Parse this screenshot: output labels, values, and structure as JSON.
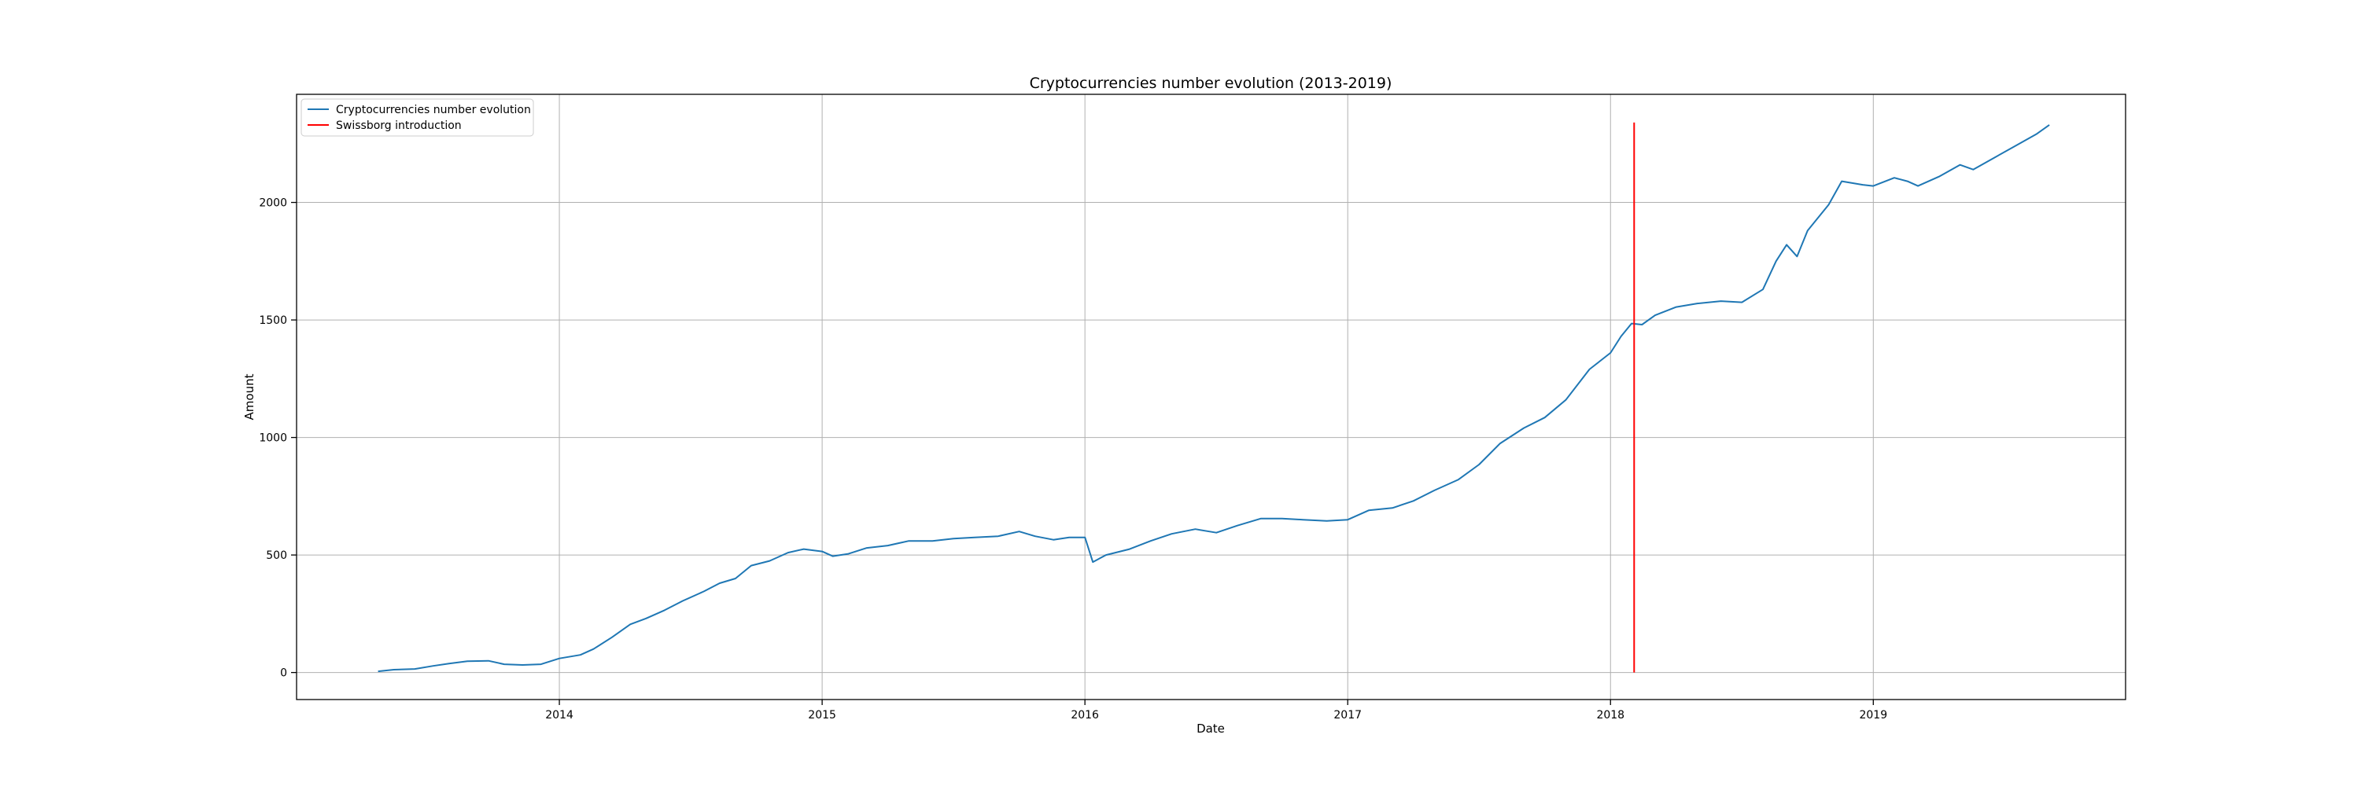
{
  "chart_data": {
    "type": "line",
    "title": "Cryptocurrencies number evolution (2013-2019)",
    "xlabel": "Date",
    "ylabel": "Amount",
    "xlim": [
      2013.0,
      2019.96
    ],
    "ylim": [
      -115,
      2460
    ],
    "grid": true,
    "legend_position": "top-left",
    "x_ticks": [
      2014,
      2015,
      2016,
      2017,
      2018,
      2019
    ],
    "x_tick_labels": [
      "2014",
      "2015",
      "2016",
      "2017",
      "2018",
      "2019"
    ],
    "y_ticks": [
      0,
      500,
      1000,
      1500,
      2000
    ],
    "y_tick_labels": [
      "0",
      "500",
      "1000",
      "1500",
      "2000"
    ],
    "series": [
      {
        "name": "Cryptocurrencies number evolution",
        "color": "#1f77b4",
        "points": [
          [
            2013.31,
            5
          ],
          [
            2013.37,
            12
          ],
          [
            2013.45,
            15
          ],
          [
            2013.52,
            28
          ],
          [
            2013.58,
            38
          ],
          [
            2013.65,
            48
          ],
          [
            2013.73,
            50
          ],
          [
            2013.79,
            35
          ],
          [
            2013.86,
            32
          ],
          [
            2013.93,
            35
          ],
          [
            2014.0,
            60
          ],
          [
            2014.08,
            75
          ],
          [
            2014.13,
            100
          ],
          [
            2014.2,
            150
          ],
          [
            2014.27,
            205
          ],
          [
            2014.33,
            230
          ],
          [
            2014.4,
            265
          ],
          [
            2014.47,
            305
          ],
          [
            2014.55,
            345
          ],
          [
            2014.61,
            380
          ],
          [
            2014.67,
            400
          ],
          [
            2014.73,
            455
          ],
          [
            2014.8,
            475
          ],
          [
            2014.87,
            510
          ],
          [
            2014.93,
            525
          ],
          [
            2015.0,
            515
          ],
          [
            2015.04,
            495
          ],
          [
            2015.1,
            505
          ],
          [
            2015.17,
            530
          ],
          [
            2015.25,
            540
          ],
          [
            2015.33,
            560
          ],
          [
            2015.42,
            560
          ],
          [
            2015.5,
            570
          ],
          [
            2015.58,
            575
          ],
          [
            2015.67,
            580
          ],
          [
            2015.75,
            600
          ],
          [
            2015.81,
            580
          ],
          [
            2015.88,
            565
          ],
          [
            2015.94,
            575
          ],
          [
            2016.0,
            575
          ],
          [
            2016.03,
            470
          ],
          [
            2016.08,
            500
          ],
          [
            2016.17,
            525
          ],
          [
            2016.25,
            560
          ],
          [
            2016.33,
            590
          ],
          [
            2016.42,
            610
          ],
          [
            2016.5,
            595
          ],
          [
            2016.58,
            625
          ],
          [
            2016.67,
            655
          ],
          [
            2016.75,
            655
          ],
          [
            2016.83,
            650
          ],
          [
            2016.92,
            645
          ],
          [
            2017.0,
            650
          ],
          [
            2017.08,
            690
          ],
          [
            2017.17,
            700
          ],
          [
            2017.25,
            730
          ],
          [
            2017.33,
            775
          ],
          [
            2017.42,
            820
          ],
          [
            2017.5,
            885
          ],
          [
            2017.58,
            975
          ],
          [
            2017.67,
            1040
          ],
          [
            2017.75,
            1085
          ],
          [
            2017.83,
            1160
          ],
          [
            2017.92,
            1290
          ],
          [
            2018.0,
            1360
          ],
          [
            2018.04,
            1430
          ],
          [
            2018.08,
            1485
          ],
          [
            2018.12,
            1480
          ],
          [
            2018.17,
            1520
          ],
          [
            2018.25,
            1555
          ],
          [
            2018.33,
            1570
          ],
          [
            2018.42,
            1580
          ],
          [
            2018.5,
            1575
          ],
          [
            2018.58,
            1630
          ],
          [
            2018.63,
            1750
          ],
          [
            2018.67,
            1820
          ],
          [
            2018.71,
            1770
          ],
          [
            2018.75,
            1880
          ],
          [
            2018.83,
            1990
          ],
          [
            2018.88,
            2090
          ],
          [
            2018.96,
            2075
          ],
          [
            2019.0,
            2070
          ],
          [
            2019.08,
            2105
          ],
          [
            2019.13,
            2090
          ],
          [
            2019.17,
            2070
          ],
          [
            2019.25,
            2110
          ],
          [
            2019.33,
            2160
          ],
          [
            2019.38,
            2140
          ],
          [
            2019.46,
            2190
          ],
          [
            2019.54,
            2240
          ],
          [
            2019.62,
            2290
          ],
          [
            2019.67,
            2330
          ]
        ]
      },
      {
        "name": "Swissborg introduction",
        "color": "#ff0000",
        "points": [
          [
            2018.09,
            0
          ],
          [
            2018.09,
            2340
          ]
        ]
      }
    ]
  }
}
